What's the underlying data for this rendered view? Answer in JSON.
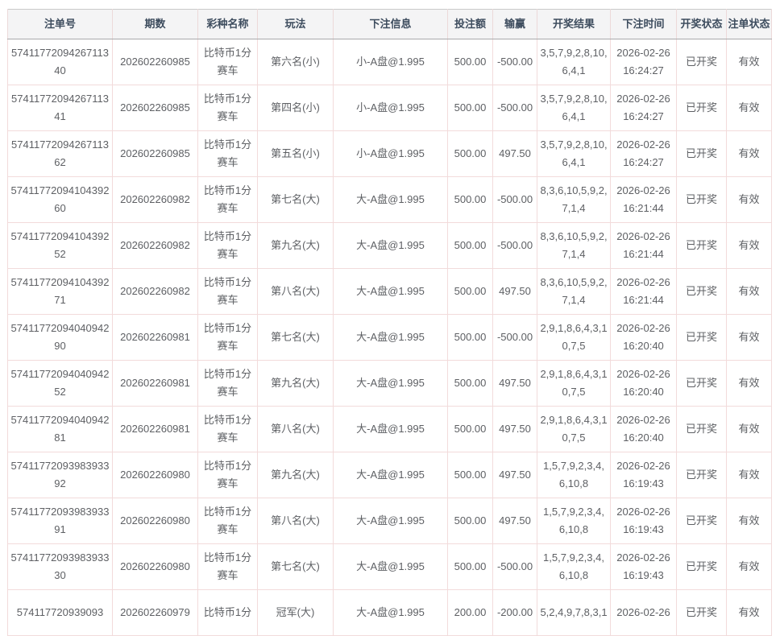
{
  "table": {
    "headers": [
      "注单号",
      "期数",
      "彩种名称",
      "玩法",
      "下注信息",
      "投注额",
      "输赢",
      "开奖结果",
      "下注时间",
      "开奖状态",
      "注单状态"
    ],
    "rows": [
      {
        "order_no": "5741177209426711340",
        "period": "202602260985",
        "lottery": "比特币1分赛车",
        "play": "第六名(小)",
        "bet_info": "小-A盘@1.995",
        "amount": "500.00",
        "win_loss": "-500.00",
        "result": "3,5,7,9,2,8,10,6,4,1",
        "bet_time": "2026-02-26 16:24:27",
        "draw_status": "已开奖",
        "order_status": "有效"
      },
      {
        "order_no": "5741177209426711341",
        "period": "202602260985",
        "lottery": "比特币1分赛车",
        "play": "第四名(小)",
        "bet_info": "小-A盘@1.995",
        "amount": "500.00",
        "win_loss": "-500.00",
        "result": "3,5,7,9,2,8,10,6,4,1",
        "bet_time": "2026-02-26 16:24:27",
        "draw_status": "已开奖",
        "order_status": "有效"
      },
      {
        "order_no": "5741177209426711362",
        "period": "202602260985",
        "lottery": "比特币1分赛车",
        "play": "第五名(小)",
        "bet_info": "小-A盘@1.995",
        "amount": "500.00",
        "win_loss": "497.50",
        "result": "3,5,7,9,2,8,10,6,4,1",
        "bet_time": "2026-02-26 16:24:27",
        "draw_status": "已开奖",
        "order_status": "有效"
      },
      {
        "order_no": "5741177209410439260",
        "period": "202602260982",
        "lottery": "比特币1分赛车",
        "play": "第七名(大)",
        "bet_info": "大-A盘@1.995",
        "amount": "500.00",
        "win_loss": "-500.00",
        "result": "8,3,6,10,5,9,2,7,1,4",
        "bet_time": "2026-02-26 16:21:44",
        "draw_status": "已开奖",
        "order_status": "有效"
      },
      {
        "order_no": "5741177209410439252",
        "period": "202602260982",
        "lottery": "比特币1分赛车",
        "play": "第九名(大)",
        "bet_info": "大-A盘@1.995",
        "amount": "500.00",
        "win_loss": "-500.00",
        "result": "8,3,6,10,5,9,2,7,1,4",
        "bet_time": "2026-02-26 16:21:44",
        "draw_status": "已开奖",
        "order_status": "有效"
      },
      {
        "order_no": "5741177209410439271",
        "period": "202602260982",
        "lottery": "比特币1分赛车",
        "play": "第八名(大)",
        "bet_info": "大-A盘@1.995",
        "amount": "500.00",
        "win_loss": "497.50",
        "result": "8,3,6,10,5,9,2,7,1,4",
        "bet_time": "2026-02-26 16:21:44",
        "draw_status": "已开奖",
        "order_status": "有效"
      },
      {
        "order_no": "5741177209404094290",
        "period": "202602260981",
        "lottery": "比特币1分赛车",
        "play": "第七名(大)",
        "bet_info": "大-A盘@1.995",
        "amount": "500.00",
        "win_loss": "-500.00",
        "result": "2,9,1,8,6,4,3,10,7,5",
        "bet_time": "2026-02-26 16:20:40",
        "draw_status": "已开奖",
        "order_status": "有效"
      },
      {
        "order_no": "5741177209404094252",
        "period": "202602260981",
        "lottery": "比特币1分赛车",
        "play": "第九名(大)",
        "bet_info": "大-A盘@1.995",
        "amount": "500.00",
        "win_loss": "497.50",
        "result": "2,9,1,8,6,4,3,10,7,5",
        "bet_time": "2026-02-26 16:20:40",
        "draw_status": "已开奖",
        "order_status": "有效"
      },
      {
        "order_no": "5741177209404094281",
        "period": "202602260981",
        "lottery": "比特币1分赛车",
        "play": "第八名(大)",
        "bet_info": "大-A盘@1.995",
        "amount": "500.00",
        "win_loss": "497.50",
        "result": "2,9,1,8,6,4,3,10,7,5",
        "bet_time": "2026-02-26 16:20:40",
        "draw_status": "已开奖",
        "order_status": "有效"
      },
      {
        "order_no": "5741177209398393392",
        "period": "202602260980",
        "lottery": "比特币1分赛车",
        "play": "第九名(大)",
        "bet_info": "大-A盘@1.995",
        "amount": "500.00",
        "win_loss": "497.50",
        "result": "1,5,7,9,2,3,4,6,10,8",
        "bet_time": "2026-02-26 16:19:43",
        "draw_status": "已开奖",
        "order_status": "有效"
      },
      {
        "order_no": "5741177209398393391",
        "period": "202602260980",
        "lottery": "比特币1分赛车",
        "play": "第八名(大)",
        "bet_info": "大-A盘@1.995",
        "amount": "500.00",
        "win_loss": "497.50",
        "result": "1,5,7,9,2,3,4,6,10,8",
        "bet_time": "2026-02-26 16:19:43",
        "draw_status": "已开奖",
        "order_status": "有效"
      },
      {
        "order_no": "5741177209398393330",
        "period": "202602260980",
        "lottery": "比特币1分赛车",
        "play": "第七名(大)",
        "bet_info": "大-A盘@1.995",
        "amount": "500.00",
        "win_loss": "-500.00",
        "result": "1,5,7,9,2,3,4,6,10,8",
        "bet_time": "2026-02-26 16:19:43",
        "draw_status": "已开奖",
        "order_status": "有效"
      },
      {
        "order_no": "574117720939093",
        "period": "202602260979",
        "lottery": "比特币1分",
        "play": "冠军(大)",
        "bet_info": "大-A盘@1.995",
        "amount": "200.00",
        "win_loss": "-200.00",
        "result": "5,2,4,9,7,8,3,1",
        "bet_time": "2026-02-26",
        "draw_status": "已开奖",
        "order_status": "有效"
      }
    ]
  },
  "colors": {
    "header_bg": "#f4f4f5",
    "header_text": "#3d4c5e",
    "body_text": "#5e6064",
    "border_inner": "#f2dbdb",
    "border_outer": "#c9c9c9",
    "header_divider": "#a9a9ab",
    "row_bg": "#ffffff"
  }
}
